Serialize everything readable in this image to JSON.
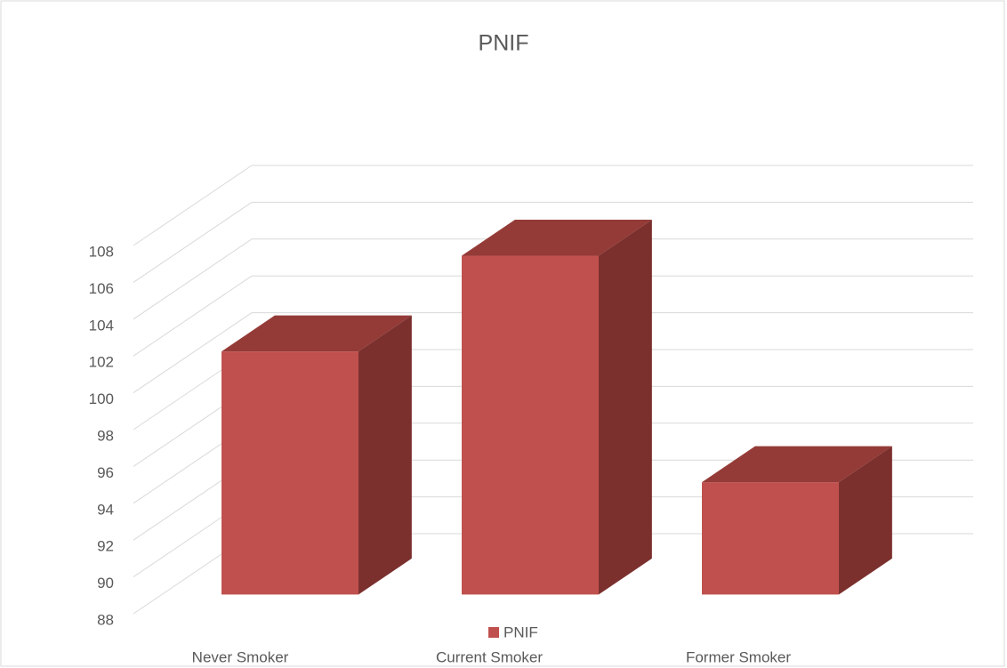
{
  "chart_data": {
    "type": "bar3d",
    "title": "PNIF",
    "categories": [
      "Never Smoker",
      "Current  Smoker",
      "Former Smoker"
    ],
    "series": [
      {
        "name": "PNIF",
        "color": "#c0504d",
        "values": [
          101.2,
          106.4,
          94.1
        ]
      }
    ],
    "ylim": [
      88,
      108
    ],
    "yticks": [
      88,
      90,
      92,
      94,
      96,
      98,
      100,
      102,
      104,
      106,
      108
    ],
    "grid": true,
    "legend": "bottom"
  }
}
